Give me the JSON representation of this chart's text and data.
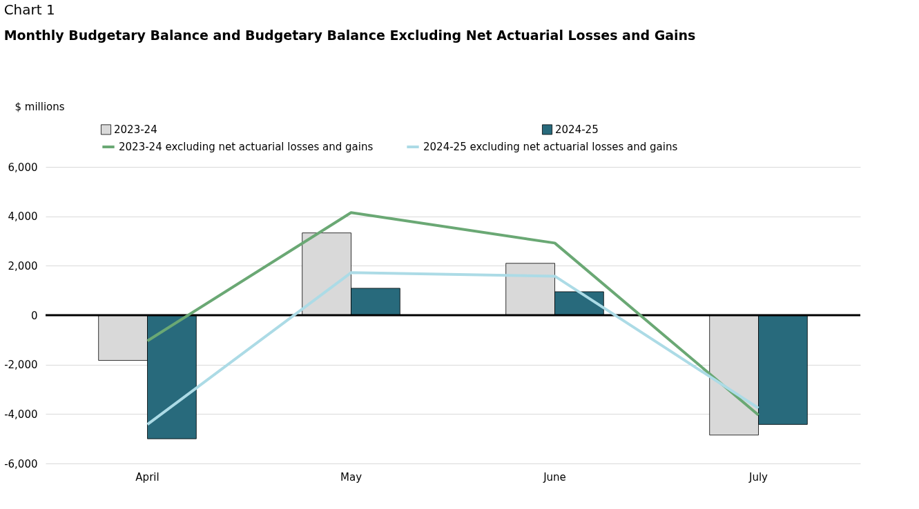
{
  "chart_data": {
    "type": "bar",
    "title": "Chart 1",
    "subtitle": "Monthly Budgetary Balance and Budgetary Balance Excluding Net Actuarial Losses and Gains",
    "ylabel": "$ millions",
    "categories": [
      "April",
      "May",
      "June",
      "July"
    ],
    "series": [
      {
        "name": "2023-24",
        "color": "#d9d9d9",
        "values": [
          -1830,
          3330,
          2100,
          -4850
        ]
      },
      {
        "name": "2024-25",
        "color": "#286a7c",
        "values": [
          -5000,
          1090,
          950,
          -4420
        ]
      },
      {
        "name": "2023-24 excluding net actuarial losses and gains",
        "type": "line",
        "color": "#6aa874",
        "values": [
          -1040,
          4150,
          2920,
          -4040
        ]
      },
      {
        "name": "2024-25 excluding net actuarial losses and gains",
        "type": "line",
        "color": "#acdbe6",
        "values": [
          -4420,
          1720,
          1580,
          -3760
        ]
      }
    ],
    "ylim": [
      -6000,
      6000
    ],
    "yticks": [
      {
        "value": -6000,
        "label": "-6,000"
      },
      {
        "value": -4000,
        "label": "-4,000"
      },
      {
        "value": -2000,
        "label": "-2,000"
      },
      0,
      {
        "value": 2000,
        "label": "2,000"
      },
      {
        "value": 4000,
        "label": "4,000"
      },
      {
        "value": 6000,
        "label": "6,000"
      }
    ],
    "grid": "y",
    "legend": "top",
    "ref_lines": [
      {
        "axis": "y",
        "value": 0,
        "color": "#000000"
      }
    ]
  }
}
